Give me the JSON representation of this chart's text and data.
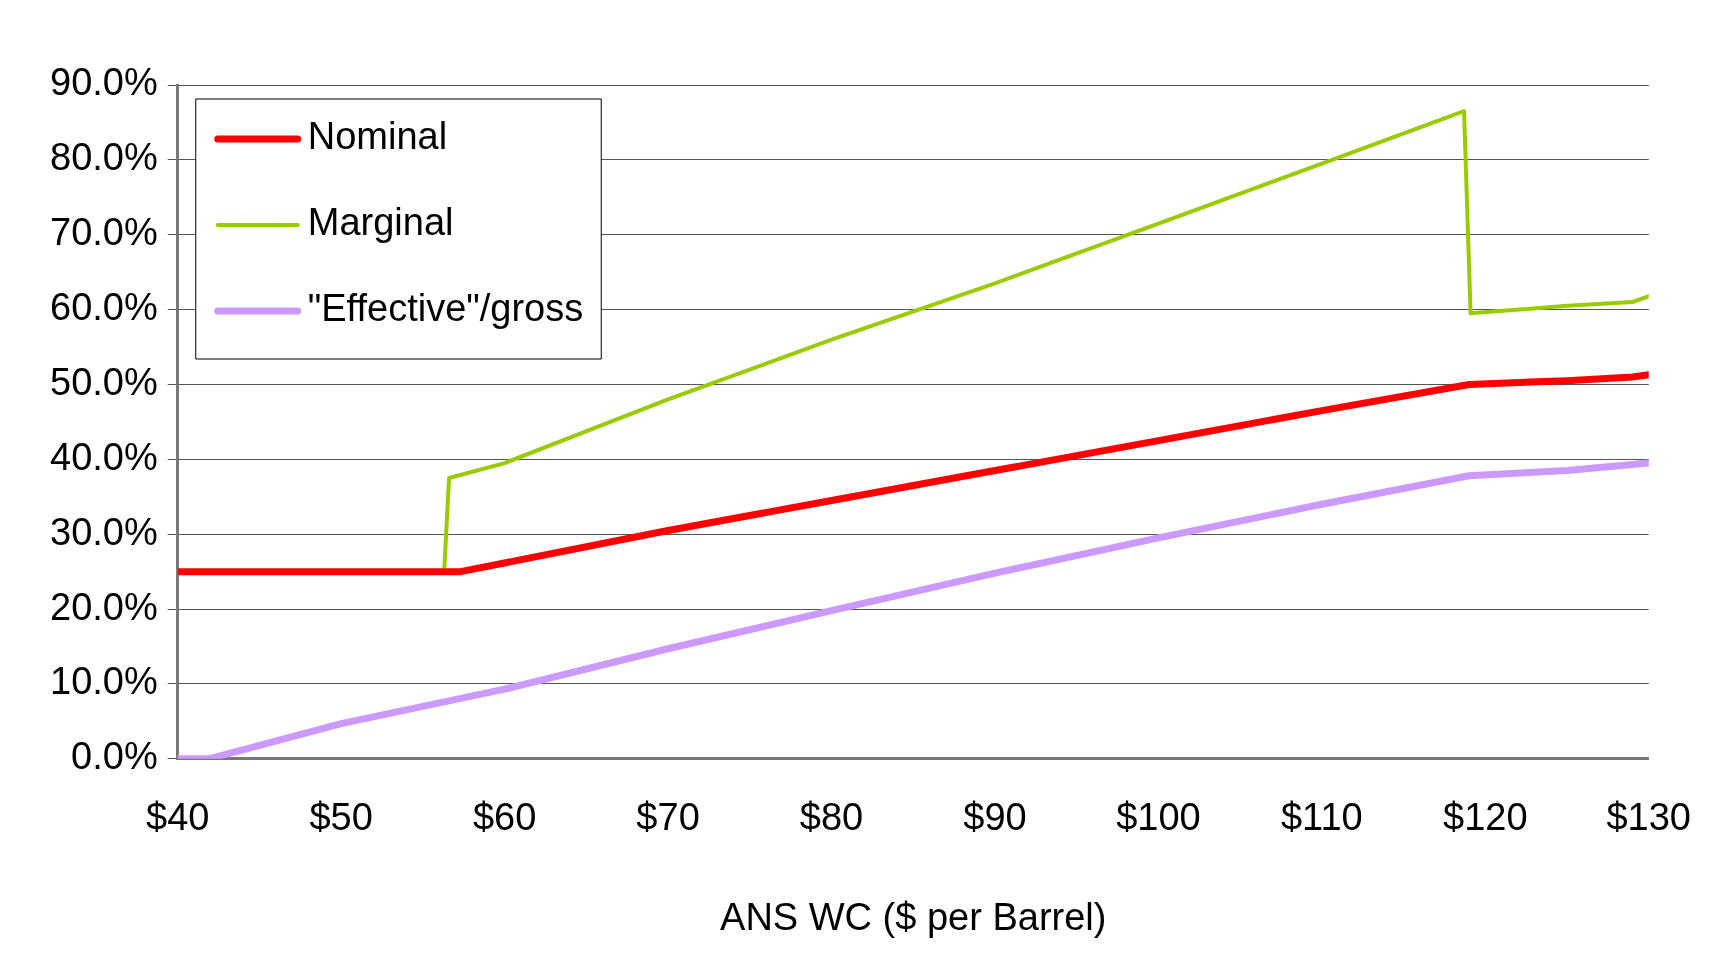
{
  "chart_data": {
    "type": "line",
    "xlabel": "ANS WC ($ per Barrel)",
    "xlim": [
      40,
      130
    ],
    "xticks": [
      {
        "value": 40,
        "label": "$40"
      },
      {
        "value": 50,
        "label": "$50"
      },
      {
        "value": 60,
        "label": "$60"
      },
      {
        "value": 70,
        "label": "$70"
      },
      {
        "value": 80,
        "label": "$80"
      },
      {
        "value": 90,
        "label": "$90"
      },
      {
        "value": 100,
        "label": "$100"
      },
      {
        "value": 110,
        "label": "$110"
      },
      {
        "value": 120,
        "label": "$120"
      },
      {
        "value": 130,
        "label": "$130"
      }
    ],
    "ylim": [
      0,
      90
    ],
    "yticks": [
      {
        "value": 0,
        "label": "0.0%"
      },
      {
        "value": 10,
        "label": "10.0%"
      },
      {
        "value": 20,
        "label": "20.0%"
      },
      {
        "value": 30,
        "label": "30.0%"
      },
      {
        "value": 40,
        "label": "40.0%"
      },
      {
        "value": 50,
        "label": "50.0%"
      },
      {
        "value": 60,
        "label": "60.0%"
      },
      {
        "value": 70,
        "label": "70.0%"
      },
      {
        "value": 80,
        "label": "80.0%"
      },
      {
        "value": 90,
        "label": "90.0%"
      }
    ],
    "grid": "y",
    "legend": "top left",
    "marker": "none",
    "line_style": "solid",
    "series": [
      {
        "name": "Nominal",
        "color": "#ff0000",
        "x": [
          40,
          57.3,
          70,
          80,
          90,
          100,
          110,
          119,
          125,
          129,
          130
        ],
        "values": [
          25,
          25,
          30.5,
          34.5,
          38.5,
          42.5,
          46.5,
          50,
          50.5,
          51,
          51.3
        ]
      },
      {
        "name": "Marginal",
        "color": "#99cc00",
        "x": [
          40,
          56.3,
          56.6,
          60,
          70,
          80,
          90,
          100,
          110,
          118.7,
          119.1,
          125,
          129,
          130
        ],
        "values": [
          25,
          25,
          37.5,
          39.5,
          48,
          56,
          63.5,
          71.5,
          79.5,
          86.5,
          59.5,
          60.5,
          61,
          61.8
        ]
      },
      {
        "name": "\"Effective\"/gross",
        "color": "#cc99ff",
        "x": [
          40,
          41.9,
          50,
          60,
          70,
          80,
          90,
          100,
          110,
          119,
          125,
          130
        ],
        "values": [
          0,
          0,
          4.7,
          9.3,
          14.7,
          19.8,
          24.8,
          29.5,
          34,
          37.8,
          38.5,
          39.5
        ]
      }
    ]
  }
}
